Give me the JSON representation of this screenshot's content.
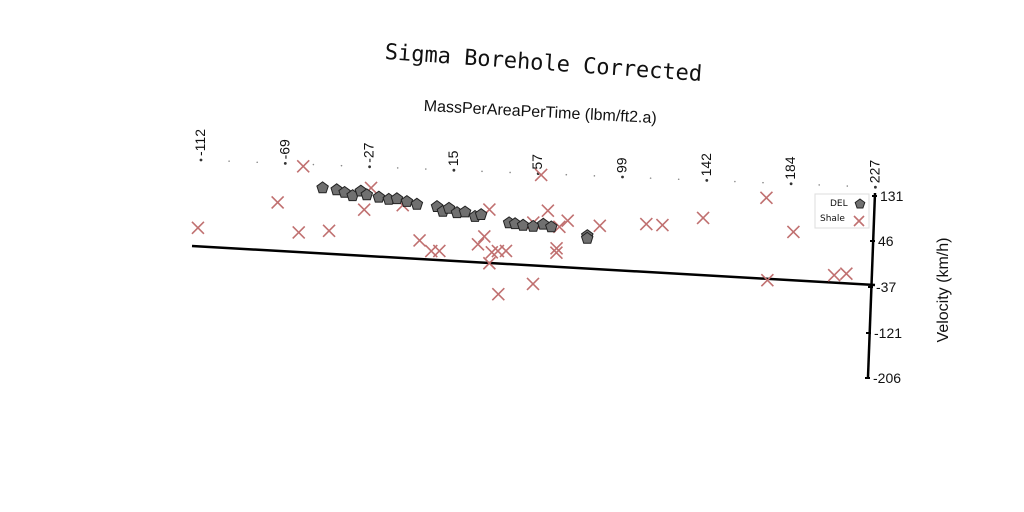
{
  "chart_data": {
    "type": "scatter",
    "title": "Sigma Borehole Corrected",
    "xlabel": "MassPerAreaPerTime (lbm/ft2.a)",
    "ylabel": "Velocity (km/h)",
    "xlim": [
      -112,
      227
    ],
    "ylim": [
      -206,
      131
    ],
    "x_ticks": [
      "-112",
      "-69",
      "-27",
      "15",
      "57",
      "99",
      "142",
      "184",
      "227"
    ],
    "y_ticks": [
      "131",
      "46",
      "-37",
      "-121",
      "-206"
    ],
    "legend_position": "top-right",
    "series": [
      {
        "name": "DEL",
        "marker": "pentagon",
        "color": "#707070",
        "points": [
          [
            -50,
            68
          ],
          [
            -43,
            66
          ],
          [
            -39,
            62
          ],
          [
            -35,
            57
          ],
          [
            -31,
            66
          ],
          [
            -28,
            60
          ],
          [
            -22,
            57
          ],
          [
            -17,
            54
          ],
          [
            -13,
            56
          ],
          [
            -8,
            52
          ],
          [
            -3,
            48
          ],
          [
            7,
            46
          ],
          [
            10,
            38
          ],
          [
            13,
            44
          ],
          [
            17,
            37
          ],
          [
            21,
            39
          ],
          [
            26,
            32
          ],
          [
            29,
            36
          ],
          [
            43,
            24
          ],
          [
            46,
            23
          ],
          [
            50,
            21
          ],
          [
            55,
            20
          ],
          [
            60,
            25
          ],
          [
            64,
            21
          ],
          [
            82,
            9
          ],
          [
            82,
            4
          ]
        ]
      },
      {
        "name": "Shale",
        "marker": "x",
        "color": "#c07070",
        "points": [
          [
            -111,
            -17
          ],
          [
            -72,
            37
          ],
          [
            -60,
            105
          ],
          [
            -61,
            -15
          ],
          [
            -46,
            -9
          ],
          [
            -26,
            73
          ],
          [
            -29,
            33
          ],
          [
            -1,
            -17
          ],
          [
            -10,
            45
          ],
          [
            5,
            -35
          ],
          [
            9,
            -34
          ],
          [
            28,
            -18
          ],
          [
            31,
            -3
          ],
          [
            33,
            46
          ],
          [
            34,
            -51
          ],
          [
            35,
            -31
          ],
          [
            38,
            -28
          ],
          [
            39,
            -106
          ],
          [
            42,
            -27
          ],
          [
            56,
            -84
          ],
          [
            58,
            114
          ],
          [
            55,
            27
          ],
          [
            62,
            50
          ],
          [
            67,
            -17
          ],
          [
            67,
            -25
          ],
          [
            68,
            22
          ],
          [
            72,
            34
          ],
          [
            88,
            28
          ],
          [
            111,
            36
          ],
          [
            119,
            36
          ],
          [
            139,
            53
          ],
          [
            170,
            96
          ],
          [
            184,
            37
          ],
          [
            172,
            -53
          ],
          [
            205,
            -37
          ],
          [
            211,
            -33
          ]
        ]
      }
    ]
  }
}
